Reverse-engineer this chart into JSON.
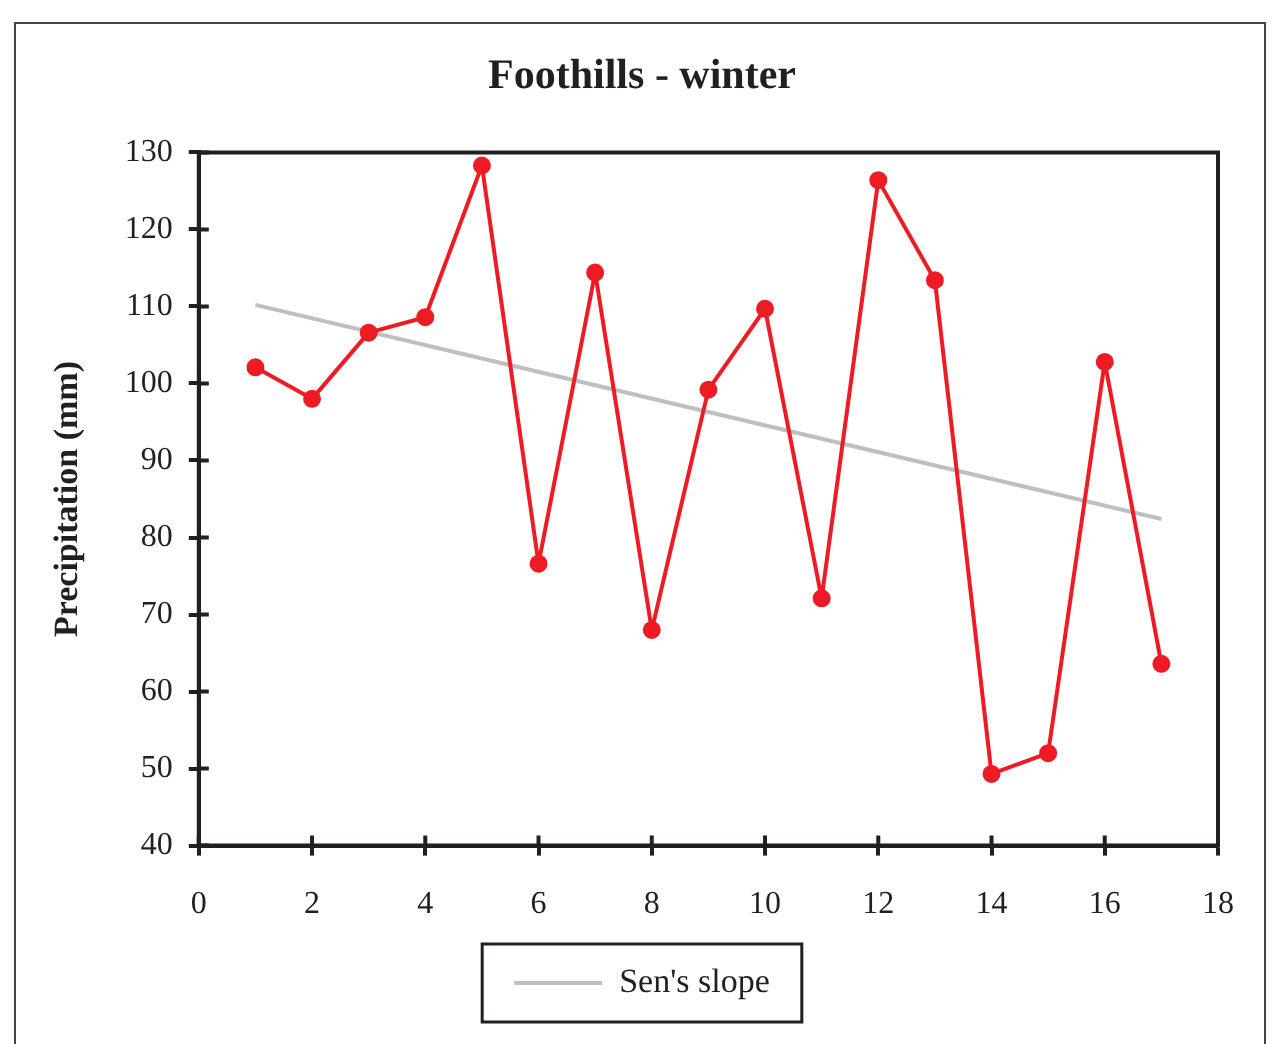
{
  "chart_data": {
    "type": "line",
    "title": "Foothills - winter",
    "ylabel": "Precipitation (mm)",
    "x": [
      1,
      2,
      3,
      4,
      5,
      6,
      7,
      8,
      9,
      10,
      11,
      12,
      13,
      14,
      15,
      16,
      17
    ],
    "series": [
      {
        "type": "line",
        "color": "#ed1c24",
        "marker": "circle",
        "values": [
          102.1,
          98.0,
          106.6,
          108.6,
          128.3,
          76.6,
          114.4,
          68.0,
          99.2,
          109.7,
          72.1,
          126.4,
          113.4,
          49.3,
          52.0,
          102.8,
          63.6
        ]
      },
      {
        "type": "line",
        "name": "Sen's slope",
        "color": "#bfbfbf",
        "marker": "none",
        "x": [
          1,
          17
        ],
        "values": [
          110.2,
          82.4
        ]
      }
    ],
    "xlim": [
      0,
      18
    ],
    "xticks": [
      0,
      2,
      4,
      6,
      8,
      10,
      12,
      14,
      16,
      18
    ],
    "ylim": [
      40,
      130
    ],
    "yticks": [
      40,
      50,
      60,
      70,
      80,
      90,
      100,
      110,
      120,
      130
    ],
    "grid": false,
    "legend": "bottom"
  }
}
